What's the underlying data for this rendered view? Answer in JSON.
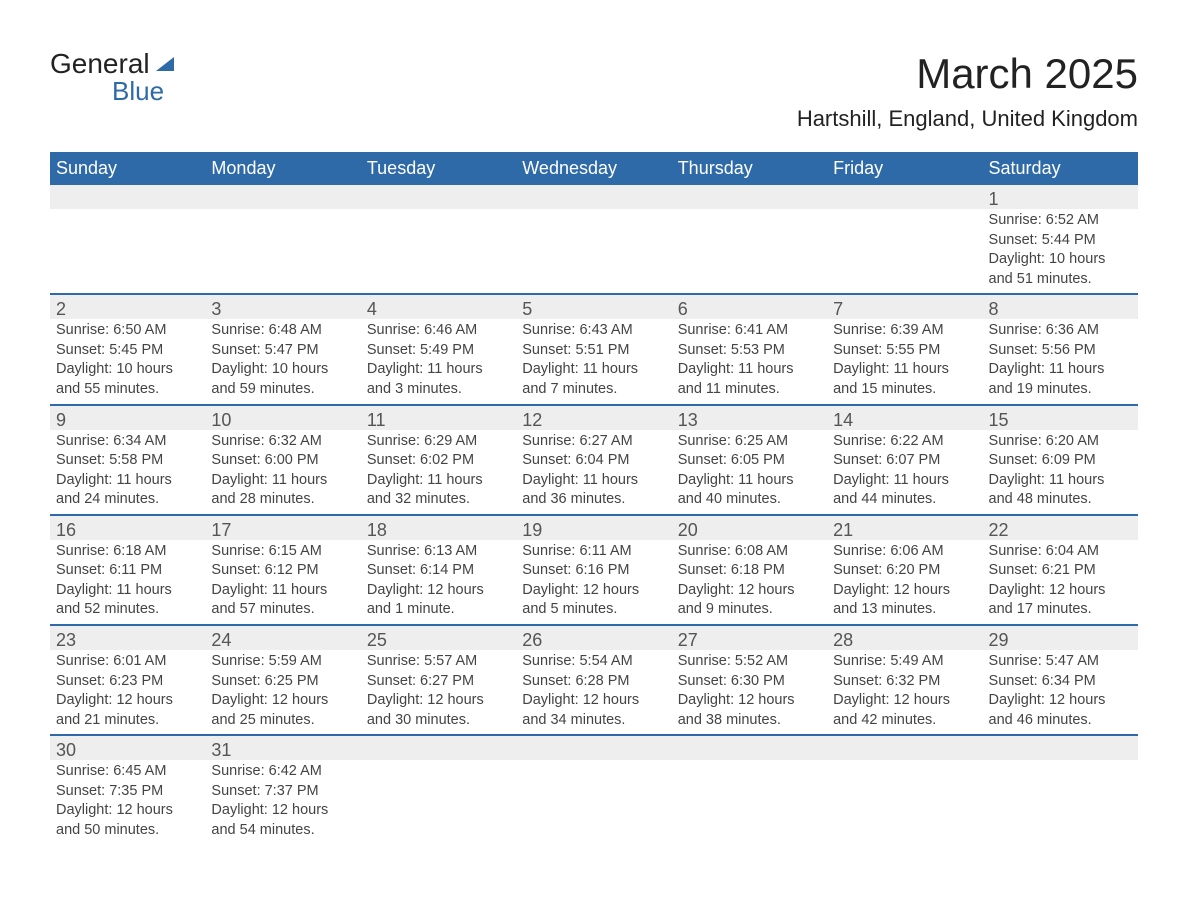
{
  "logo": {
    "text_top": "General",
    "text_bottom": "Blue"
  },
  "title": "March 2025",
  "location": "Hartshill, England, United Kingdom",
  "colors": {
    "header_bg": "#2e6aa8",
    "header_text": "#ffffff",
    "daynum_bg": "#eeeeee",
    "row_divider": "#2e6aa8",
    "body_text": "#444444",
    "title_text": "#222222"
  },
  "weekdays": [
    "Sunday",
    "Monday",
    "Tuesday",
    "Wednesday",
    "Thursday",
    "Friday",
    "Saturday"
  ],
  "weeks": [
    [
      null,
      null,
      null,
      null,
      null,
      null,
      {
        "n": "1",
        "sr": "Sunrise: 6:52 AM",
        "ss": "Sunset: 5:44 PM",
        "d1": "Daylight: 10 hours",
        "d2": "and 51 minutes."
      }
    ],
    [
      {
        "n": "2",
        "sr": "Sunrise: 6:50 AM",
        "ss": "Sunset: 5:45 PM",
        "d1": "Daylight: 10 hours",
        "d2": "and 55 minutes."
      },
      {
        "n": "3",
        "sr": "Sunrise: 6:48 AM",
        "ss": "Sunset: 5:47 PM",
        "d1": "Daylight: 10 hours",
        "d2": "and 59 minutes."
      },
      {
        "n": "4",
        "sr": "Sunrise: 6:46 AM",
        "ss": "Sunset: 5:49 PM",
        "d1": "Daylight: 11 hours",
        "d2": "and 3 minutes."
      },
      {
        "n": "5",
        "sr": "Sunrise: 6:43 AM",
        "ss": "Sunset: 5:51 PM",
        "d1": "Daylight: 11 hours",
        "d2": "and 7 minutes."
      },
      {
        "n": "6",
        "sr": "Sunrise: 6:41 AM",
        "ss": "Sunset: 5:53 PM",
        "d1": "Daylight: 11 hours",
        "d2": "and 11 minutes."
      },
      {
        "n": "7",
        "sr": "Sunrise: 6:39 AM",
        "ss": "Sunset: 5:55 PM",
        "d1": "Daylight: 11 hours",
        "d2": "and 15 minutes."
      },
      {
        "n": "8",
        "sr": "Sunrise: 6:36 AM",
        "ss": "Sunset: 5:56 PM",
        "d1": "Daylight: 11 hours",
        "d2": "and 19 minutes."
      }
    ],
    [
      {
        "n": "9",
        "sr": "Sunrise: 6:34 AM",
        "ss": "Sunset: 5:58 PM",
        "d1": "Daylight: 11 hours",
        "d2": "and 24 minutes."
      },
      {
        "n": "10",
        "sr": "Sunrise: 6:32 AM",
        "ss": "Sunset: 6:00 PM",
        "d1": "Daylight: 11 hours",
        "d2": "and 28 minutes."
      },
      {
        "n": "11",
        "sr": "Sunrise: 6:29 AM",
        "ss": "Sunset: 6:02 PM",
        "d1": "Daylight: 11 hours",
        "d2": "and 32 minutes."
      },
      {
        "n": "12",
        "sr": "Sunrise: 6:27 AM",
        "ss": "Sunset: 6:04 PM",
        "d1": "Daylight: 11 hours",
        "d2": "and 36 minutes."
      },
      {
        "n": "13",
        "sr": "Sunrise: 6:25 AM",
        "ss": "Sunset: 6:05 PM",
        "d1": "Daylight: 11 hours",
        "d2": "and 40 minutes."
      },
      {
        "n": "14",
        "sr": "Sunrise: 6:22 AM",
        "ss": "Sunset: 6:07 PM",
        "d1": "Daylight: 11 hours",
        "d2": "and 44 minutes."
      },
      {
        "n": "15",
        "sr": "Sunrise: 6:20 AM",
        "ss": "Sunset: 6:09 PM",
        "d1": "Daylight: 11 hours",
        "d2": "and 48 minutes."
      }
    ],
    [
      {
        "n": "16",
        "sr": "Sunrise: 6:18 AM",
        "ss": "Sunset: 6:11 PM",
        "d1": "Daylight: 11 hours",
        "d2": "and 52 minutes."
      },
      {
        "n": "17",
        "sr": "Sunrise: 6:15 AM",
        "ss": "Sunset: 6:12 PM",
        "d1": "Daylight: 11 hours",
        "d2": "and 57 minutes."
      },
      {
        "n": "18",
        "sr": "Sunrise: 6:13 AM",
        "ss": "Sunset: 6:14 PM",
        "d1": "Daylight: 12 hours",
        "d2": "and 1 minute."
      },
      {
        "n": "19",
        "sr": "Sunrise: 6:11 AM",
        "ss": "Sunset: 6:16 PM",
        "d1": "Daylight: 12 hours",
        "d2": "and 5 minutes."
      },
      {
        "n": "20",
        "sr": "Sunrise: 6:08 AM",
        "ss": "Sunset: 6:18 PM",
        "d1": "Daylight: 12 hours",
        "d2": "and 9 minutes."
      },
      {
        "n": "21",
        "sr": "Sunrise: 6:06 AM",
        "ss": "Sunset: 6:20 PM",
        "d1": "Daylight: 12 hours",
        "d2": "and 13 minutes."
      },
      {
        "n": "22",
        "sr": "Sunrise: 6:04 AM",
        "ss": "Sunset: 6:21 PM",
        "d1": "Daylight: 12 hours",
        "d2": "and 17 minutes."
      }
    ],
    [
      {
        "n": "23",
        "sr": "Sunrise: 6:01 AM",
        "ss": "Sunset: 6:23 PM",
        "d1": "Daylight: 12 hours",
        "d2": "and 21 minutes."
      },
      {
        "n": "24",
        "sr": "Sunrise: 5:59 AM",
        "ss": "Sunset: 6:25 PM",
        "d1": "Daylight: 12 hours",
        "d2": "and 25 minutes."
      },
      {
        "n": "25",
        "sr": "Sunrise: 5:57 AM",
        "ss": "Sunset: 6:27 PM",
        "d1": "Daylight: 12 hours",
        "d2": "and 30 minutes."
      },
      {
        "n": "26",
        "sr": "Sunrise: 5:54 AM",
        "ss": "Sunset: 6:28 PM",
        "d1": "Daylight: 12 hours",
        "d2": "and 34 minutes."
      },
      {
        "n": "27",
        "sr": "Sunrise: 5:52 AM",
        "ss": "Sunset: 6:30 PM",
        "d1": "Daylight: 12 hours",
        "d2": "and 38 minutes."
      },
      {
        "n": "28",
        "sr": "Sunrise: 5:49 AM",
        "ss": "Sunset: 6:32 PM",
        "d1": "Daylight: 12 hours",
        "d2": "and 42 minutes."
      },
      {
        "n": "29",
        "sr": "Sunrise: 5:47 AM",
        "ss": "Sunset: 6:34 PM",
        "d1": "Daylight: 12 hours",
        "d2": "and 46 minutes."
      }
    ],
    [
      {
        "n": "30",
        "sr": "Sunrise: 6:45 AM",
        "ss": "Sunset: 7:35 PM",
        "d1": "Daylight: 12 hours",
        "d2": "and 50 minutes."
      },
      {
        "n": "31",
        "sr": "Sunrise: 6:42 AM",
        "ss": "Sunset: 7:37 PM",
        "d1": "Daylight: 12 hours",
        "d2": "and 54 minutes."
      },
      null,
      null,
      null,
      null,
      null
    ]
  ]
}
